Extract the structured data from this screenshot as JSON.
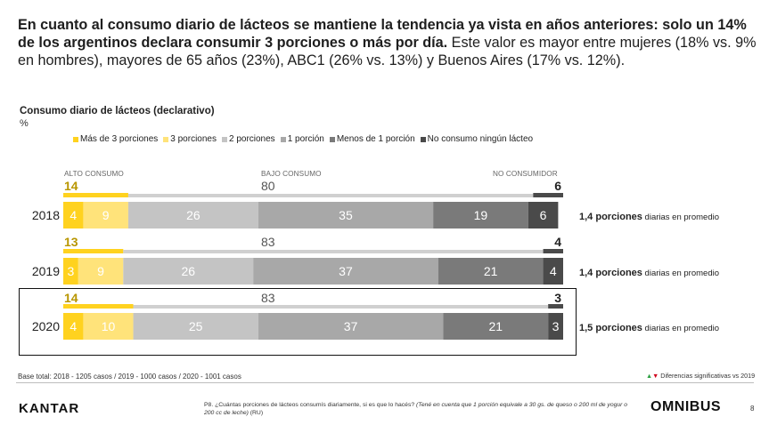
{
  "headline": {
    "bold_text": "En cuanto al consumo diario de lácteos se mantiene la tendencia ya vista en años anteriores: solo un 14% de los argentinos declara consumir 3 porciones o más por día.",
    "normal_text": " Este valor es mayor entre mujeres (18% vs. 9% en hombres), mayores de 65 años (23%), ABC1 (26% vs. 13%) y Buenos Aires (17% vs. 12%)."
  },
  "chart_data": {
    "type": "bar",
    "orientation": "horizontal-stacked",
    "title": "Consumo diario de lácteos (declarativo)",
    "unit": "%",
    "categories": [
      "2018",
      "2019",
      "2020"
    ],
    "series": [
      {
        "name": "Más de 3 porciones",
        "color": "#ffd21f",
        "values": [
          4,
          3,
          4
        ]
      },
      {
        "name": "3 porciones",
        "color": "#ffe37a",
        "values": [
          9,
          9,
          10
        ]
      },
      {
        "name": "2 porciones",
        "color": "#c4c4c4",
        "values": [
          26,
          26,
          25
        ]
      },
      {
        "name": "1 porción",
        "color": "#a8a8a8",
        "values": [
          35,
          37,
          37
        ]
      },
      {
        "name": "Menos de 1 porción",
        "color": "#7a7a7a",
        "values": [
          19,
          21,
          21
        ]
      },
      {
        "name": "No consumo ningún lácteo",
        "color": "#4a4a4a",
        "values": [
          6,
          4,
          3
        ]
      }
    ],
    "group_labels": {
      "alto": "ALTO CONSUMO",
      "bajo": "BAJO CONSUMO",
      "no": "NO CONSUMIDOR"
    },
    "group_totals": {
      "alto": [
        14,
        13,
        14
      ],
      "bajo": [
        80,
        83,
        83
      ],
      "no": [
        6,
        4,
        3
      ]
    },
    "group_colors": {
      "alto_text": "#b89600",
      "alto_bar": "#ffd21f",
      "bajo_bar": "#d0d0d0",
      "no_bar": "#4a4a4a"
    },
    "averages": [
      {
        "value": "1,4 porciones",
        "suffix": " diarias en promedio"
      },
      {
        "value": "1,4 porciones",
        "suffix": " diarias en promedio"
      },
      {
        "value": "1,5 porciones",
        "suffix": " diarias en promedio"
      }
    ],
    "xlim": [
      0,
      100
    ]
  },
  "notes": {
    "base": "Base total: 2018 - 1205 casos / 2019 - 1000 casos / 2020 - 1001 casos",
    "significance": "Diferencias significativas vs 2019",
    "significance_up": "▲",
    "significance_down": "▼",
    "question_prefix": "P8. ¿Cuántas porciones de lácteos consumís diariamente, si es que lo hacés? ",
    "question_italic": "(Tené en cuenta que 1 porción equivale a 30 gs. de queso o 200 ml de yogur o 200 cc de leche)",
    "question_suffix": " (RU)"
  },
  "footer": {
    "kantar": "KANTAR",
    "omnibus": "OMNIBUS",
    "page": "8"
  }
}
